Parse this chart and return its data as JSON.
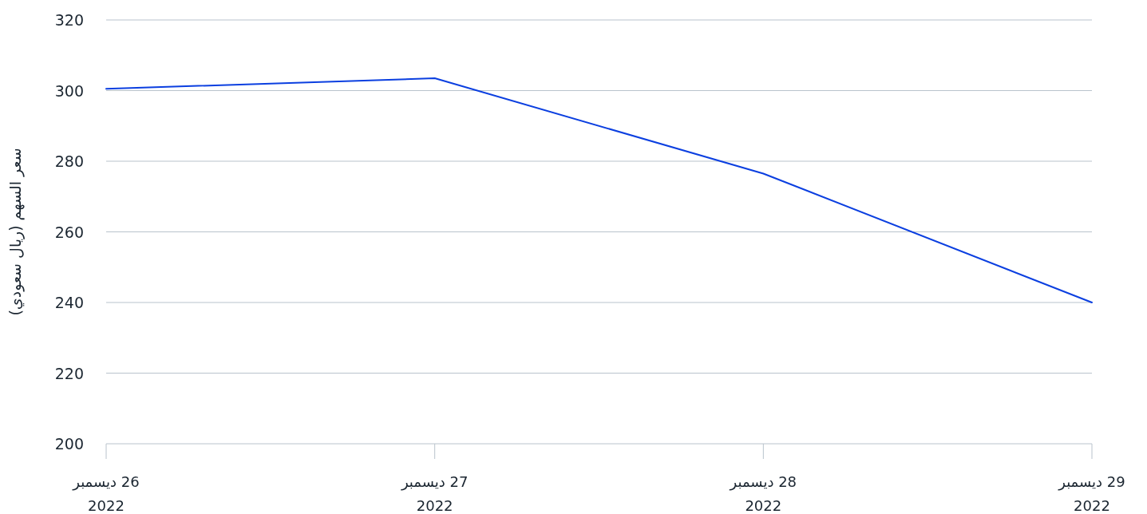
{
  "chart_data": {
    "type": "line",
    "ylabel": "سعر السهم (ريال سعودي)",
    "categories": [
      "26 ديسمبر\n2022",
      "27 ديسمبر\n2022",
      "28 ديسمبر\n2022",
      "29 ديسمبر\n2022"
    ],
    "series": [
      {
        "color": "#0b3fe0",
        "values": [
          300.5,
          303.5,
          276.5,
          240
        ]
      }
    ],
    "ylim": [
      200,
      320
    ],
    "yticks": [
      200,
      220,
      240,
      260,
      280,
      300,
      320
    ],
    "grid": "y",
    "marker": "none",
    "line_style": "solid"
  }
}
